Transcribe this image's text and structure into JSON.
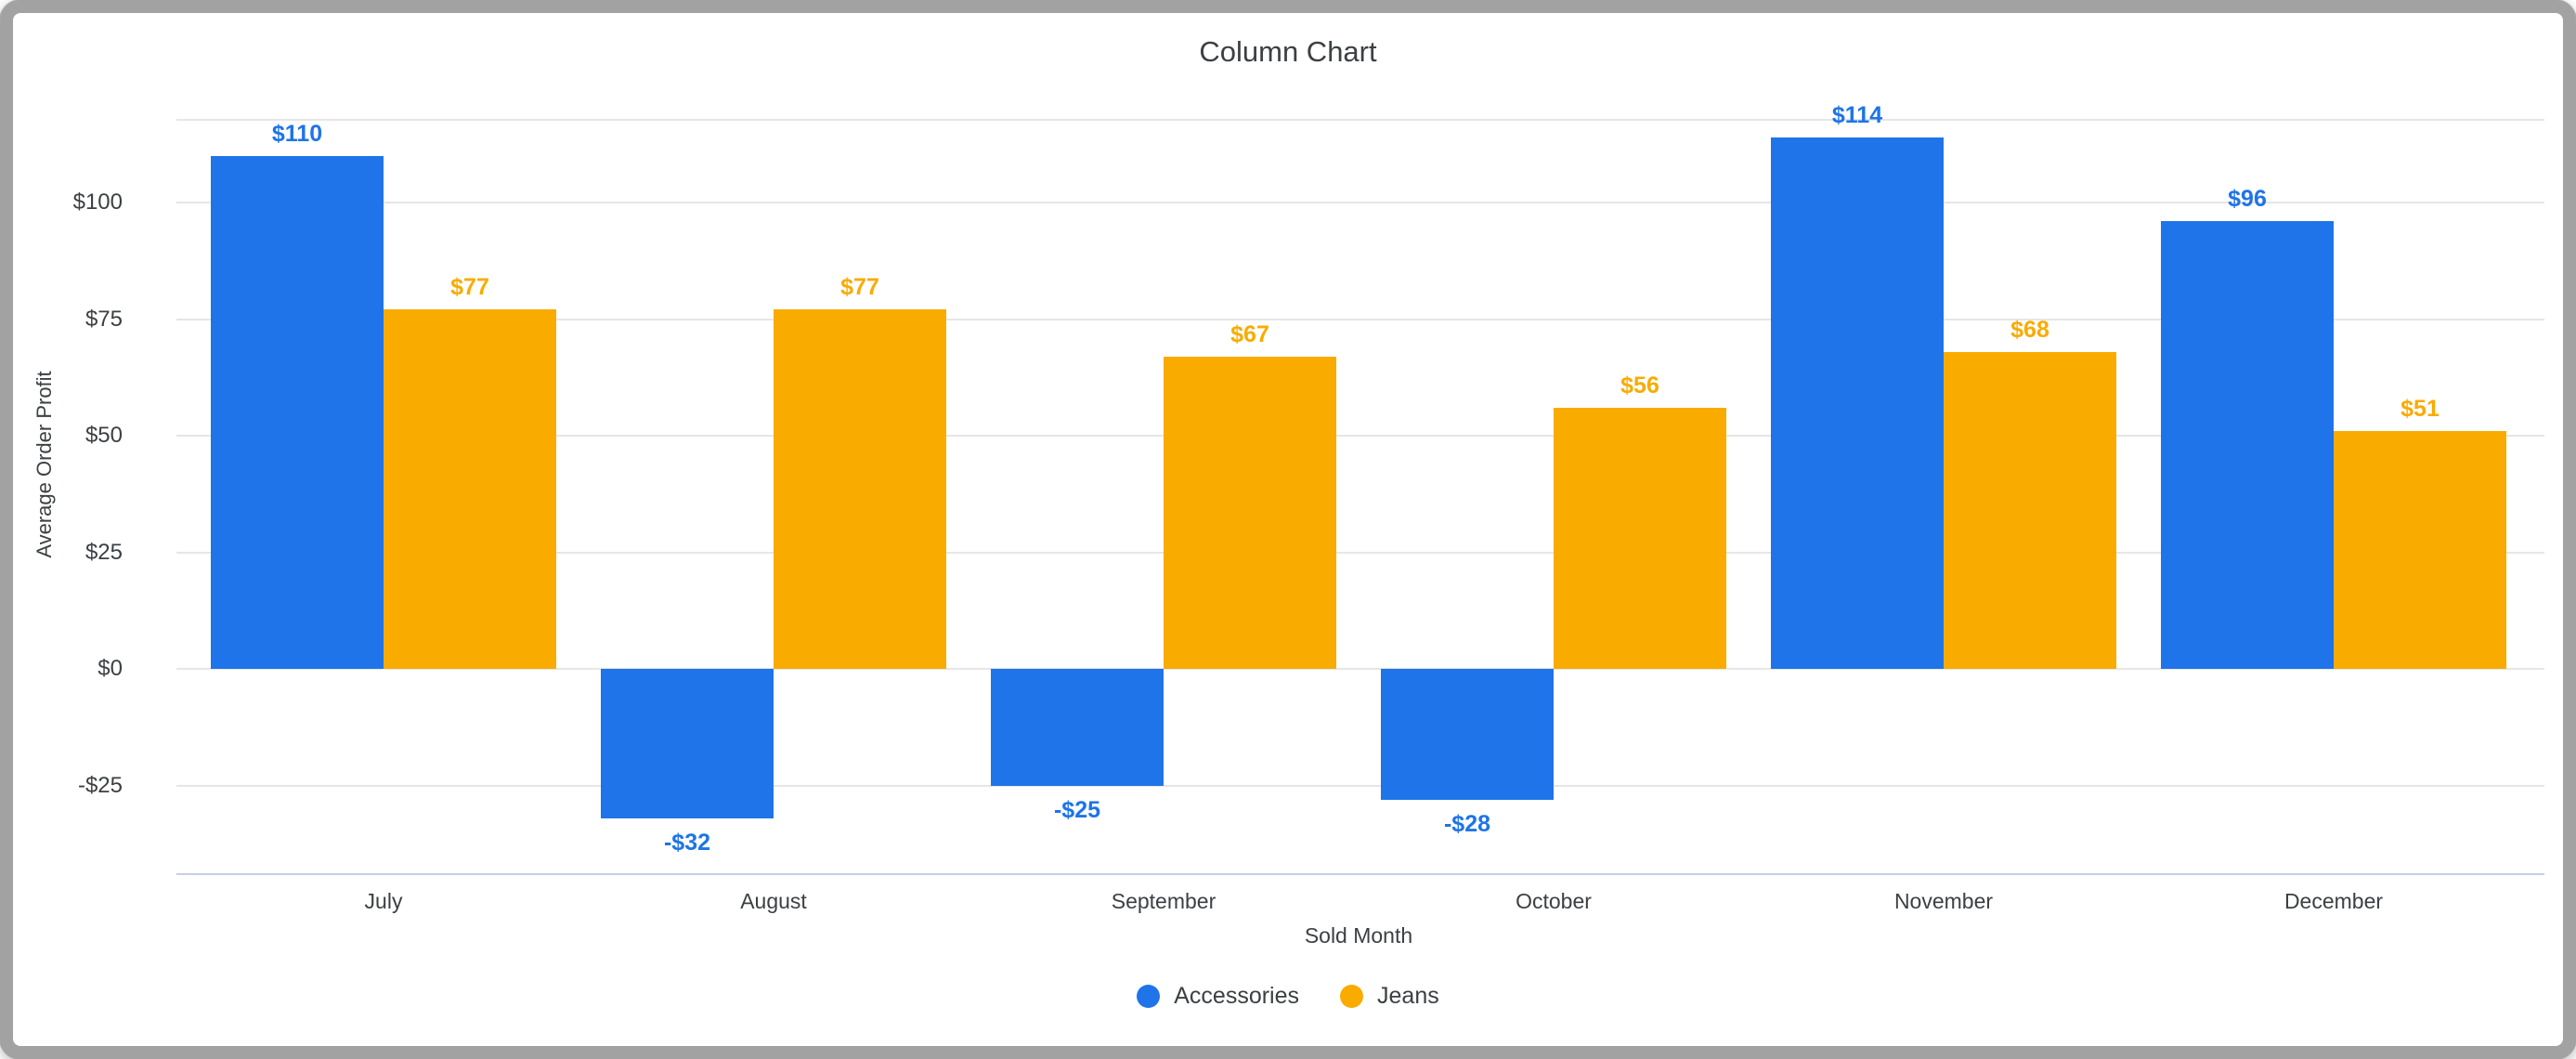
{
  "frame": {
    "border_color": "#a2a2a2",
    "background": "#ffffff"
  },
  "chart_data": {
    "type": "bar",
    "title": "Column Chart",
    "xlabel": "Sold Month",
    "ylabel": "Average Order Profit",
    "grid": true,
    "legend_position": "bottom",
    "ylim": [
      -44,
      118
    ],
    "categories": [
      "July",
      "August",
      "September",
      "October",
      "November",
      "December"
    ],
    "y_ticks": [
      {
        "value": 100,
        "label": "$100"
      },
      {
        "value": 75,
        "label": "$75"
      },
      {
        "value": 50,
        "label": "$50"
      },
      {
        "value": 25,
        "label": "$25"
      },
      {
        "value": 0,
        "label": "$0"
      },
      {
        "value": -25,
        "label": "-$25"
      }
    ],
    "series": [
      {
        "name": "Accessories",
        "color": "#1e74e8",
        "values": [
          110,
          -32,
          -25,
          -28,
          114,
          96
        ],
        "value_labels": [
          "$110",
          "-$32",
          "-$25",
          "-$28",
          "$114",
          "$96"
        ]
      },
      {
        "name": "Jeans",
        "color": "#f9ab00",
        "values": [
          77,
          77,
          67,
          56,
          68,
          51
        ],
        "value_labels": [
          "$77",
          "$77",
          "$67",
          "$56",
          "$68",
          "$51"
        ]
      }
    ],
    "colors": {
      "axis_text": "#3c4043",
      "title_text": "#3c4043",
      "gridline": "#e6e6e6",
      "plot_top_line": "#e6e6e6",
      "baseline": "#c6cfe2"
    }
  }
}
